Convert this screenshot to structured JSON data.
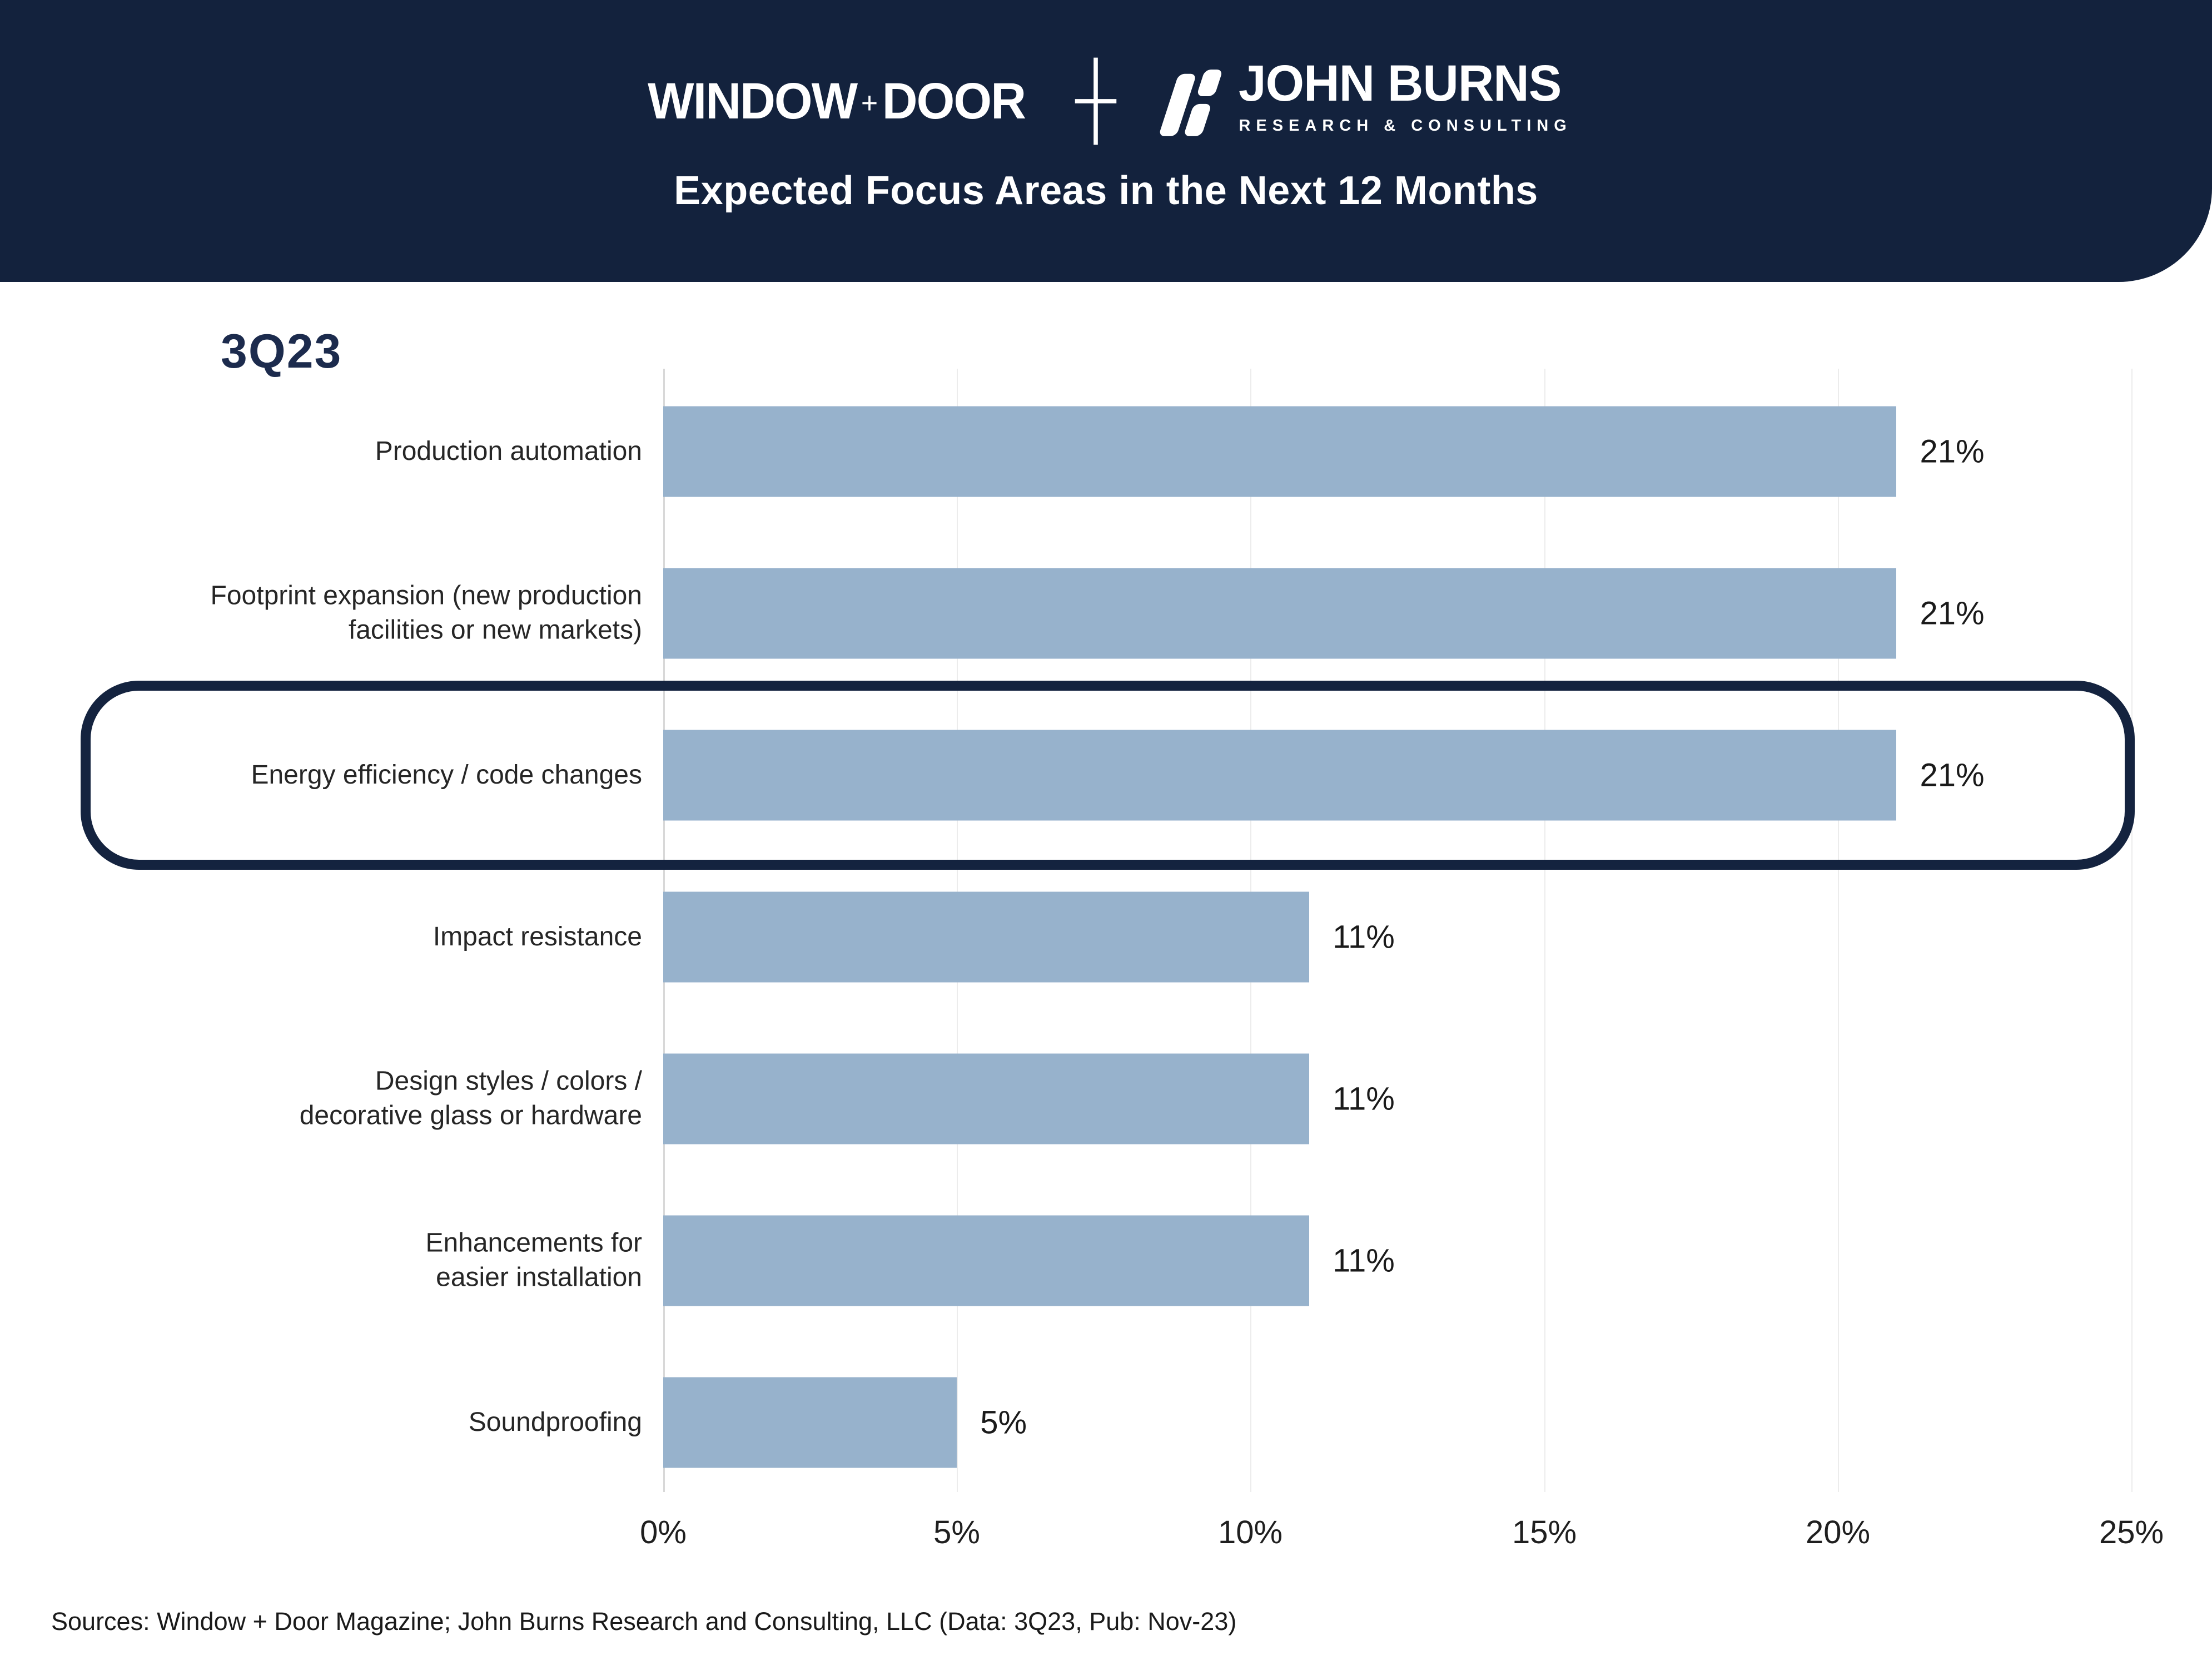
{
  "header": {
    "brand_primary": {
      "word1": "WINDOW",
      "plus": "+",
      "word2": "DOOR"
    },
    "separator_plus": "+",
    "brand_secondary": {
      "name": "JOHN BURNS",
      "tagline": "RESEARCH & CONSULTING",
      "icon": "john-burns-slashes-icon"
    },
    "title": "Expected Focus Areas in the Next 12 Months"
  },
  "chart_data": {
    "type": "bar",
    "orientation": "horizontal",
    "period_label": "3Q23",
    "categories": [
      "Production automation",
      "Footprint expansion (new production facilities or new markets)",
      "Energy efficiency / code changes",
      "Impact resistance",
      "Design styles / colors / decorative glass or hardware",
      "Enhancements for easier installation",
      "Soundproofing"
    ],
    "display_labels": [
      "Production automation",
      "Footprint expansion (new production\nfacilities or new markets)",
      "Energy efficiency / code changes",
      "Impact resistance",
      "Design styles / colors /\ndecorative glass or hardware",
      "Enhancements for\neasier installation",
      "Soundproofing"
    ],
    "values": [
      21,
      21,
      21,
      11,
      11,
      11,
      5
    ],
    "value_labels": [
      "21%",
      "21%",
      "21%",
      "11%",
      "11%",
      "11%",
      "5%"
    ],
    "x_ticks": [
      "0%",
      "5%",
      "10%",
      "15%",
      "20%",
      "25%"
    ],
    "xlim": [
      0,
      25
    ],
    "grid": true,
    "legend": false,
    "highlighted_category": "Energy efficiency / code changes",
    "highlighted_index": 2,
    "bar_color": "#97B2CC",
    "highlight_border_color": "#14233F"
  },
  "source_note": "Sources: Window + Door Magazine; John Burns Research and Consulting, LLC (Data: 3Q23, Pub: Nov-23)",
  "colors": {
    "header_bg": "#13223D",
    "bar_fill": "#97B2CC",
    "gridline": "#ECECEC",
    "period_label": "#1C2B4D",
    "text": "#262626"
  }
}
